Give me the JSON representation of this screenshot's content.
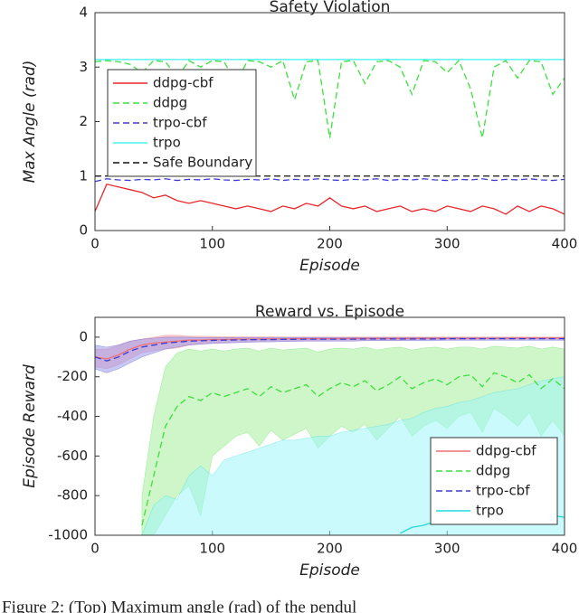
{
  "caption": "Figure 2: (Top) Maximum angle (rad) of the pendul",
  "chart_data": [
    {
      "type": "line",
      "title": "Safety Violation",
      "x_label": "Episode",
      "y_label": "Max Angle (rad)",
      "xlim": [
        0,
        400
      ],
      "ylim": [
        0,
        4
      ],
      "xticks": [
        0,
        100,
        200,
        300,
        400
      ],
      "yticks": [
        0,
        1,
        2,
        3,
        4
      ],
      "legend": "upper left",
      "x": [
        0,
        10,
        20,
        30,
        40,
        50,
        60,
        70,
        80,
        90,
        100,
        110,
        120,
        130,
        140,
        150,
        160,
        170,
        180,
        190,
        200,
        210,
        220,
        230,
        240,
        250,
        260,
        270,
        280,
        290,
        300,
        310,
        320,
        330,
        340,
        350,
        360,
        370,
        380,
        390,
        400
      ],
      "series": [
        {
          "name": "ddpg-cbf",
          "color": "#e8262a",
          "dash": false,
          "values": [
            0.35,
            0.85,
            0.8,
            0.75,
            0.7,
            0.6,
            0.65,
            0.55,
            0.5,
            0.55,
            0.5,
            0.45,
            0.4,
            0.45,
            0.4,
            0.35,
            0.45,
            0.4,
            0.5,
            0.45,
            0.6,
            0.45,
            0.4,
            0.45,
            0.35,
            0.4,
            0.45,
            0.35,
            0.4,
            0.35,
            0.45,
            0.4,
            0.35,
            0.45,
            0.4,
            0.3,
            0.45,
            0.35,
            0.45,
            0.4,
            0.3
          ]
        },
        {
          "name": "ddpg",
          "color": "#3ce03c",
          "dash": true,
          "values": [
            3.1,
            3.12,
            3.1,
            3.05,
            2.9,
            3.12,
            3.1,
            2.8,
            3.12,
            3.0,
            3.12,
            3.1,
            2.7,
            3.12,
            3.1,
            3.0,
            3.12,
            2.4,
            3.1,
            3.12,
            1.7,
            3.1,
            3.12,
            2.7,
            3.1,
            3.12,
            3.0,
            2.5,
            3.12,
            3.1,
            2.9,
            3.12,
            2.6,
            1.7,
            3.0,
            3.12,
            2.8,
            3.12,
            3.1,
            2.5,
            2.8
          ]
        },
        {
          "name": "trpo-cbf",
          "color": "#3b3bd0",
          "dash": true,
          "values": [
            0.9,
            0.95,
            0.93,
            0.92,
            0.94,
            0.93,
            0.95,
            0.92,
            0.94,
            0.93,
            0.95,
            0.93,
            0.92,
            0.94,
            0.93,
            0.95,
            0.92,
            0.94,
            0.93,
            0.95,
            0.93,
            0.92,
            0.94,
            0.93,
            0.95,
            0.92,
            0.94,
            0.93,
            0.95,
            0.93,
            0.92,
            0.94,
            0.93,
            0.95,
            0.92,
            0.94,
            0.93,
            0.95,
            0.93,
            0.92,
            0.94
          ]
        },
        {
          "name": "trpo",
          "color": "#4ff2f2",
          "dash": false,
          "values": [
            3.14,
            3.14,
            3.14,
            3.14,
            3.14,
            3.14,
            3.14,
            3.14,
            3.14,
            3.14,
            3.14,
            3.14,
            3.14,
            3.14,
            3.14,
            3.14,
            3.14,
            3.14,
            3.14,
            3.14,
            3.14,
            3.14,
            3.14,
            3.14,
            3.14,
            3.14,
            3.14,
            3.14,
            3.14,
            3.14,
            3.14,
            3.14,
            3.14,
            3.14,
            3.14,
            3.14,
            3.14,
            3.14,
            3.14,
            3.14,
            3.14
          ]
        },
        {
          "name": "Safe Boundary",
          "color": "#111111",
          "dash": true,
          "values": [
            1,
            1,
            1,
            1,
            1,
            1,
            1,
            1,
            1,
            1,
            1,
            1,
            1,
            1,
            1,
            1,
            1,
            1,
            1,
            1,
            1,
            1,
            1,
            1,
            1,
            1,
            1,
            1,
            1,
            1,
            1,
            1,
            1,
            1,
            1,
            1,
            1,
            1,
            1,
            1,
            1
          ]
        }
      ]
    },
    {
      "type": "line",
      "title": "Reward vs. Episode",
      "x_label": "Episode",
      "y_label": "Episode Reward",
      "xlim": [
        0,
        400
      ],
      "ylim": [
        -1000,
        100
      ],
      "xticks": [
        0,
        100,
        200,
        300,
        400
      ],
      "yticks": [
        -1000,
        -800,
        -600,
        -400,
        -200,
        0
      ],
      "legend": "lower right",
      "x": [
        0,
        10,
        20,
        30,
        40,
        50,
        60,
        70,
        80,
        90,
        100,
        110,
        120,
        130,
        140,
        150,
        160,
        170,
        180,
        190,
        200,
        210,
        220,
        230,
        240,
        250,
        260,
        270,
        280,
        290,
        300,
        310,
        320,
        330,
        340,
        350,
        360,
        370,
        380,
        390,
        400
      ],
      "series": [
        {
          "name": "ddpg-cbf",
          "color": "#f07070",
          "dash": false,
          "band": "#f5a0a0",
          "values": [
            -100,
            -110,
            -90,
            -60,
            -40,
            -30,
            -25,
            -20,
            -15,
            -15,
            -12,
            -12,
            -10,
            -10,
            -10,
            -9,
            -9,
            -8,
            -8,
            -8,
            -8,
            -8,
            -7,
            -7,
            -7,
            -7,
            -7,
            -7,
            -6,
            -6,
            -6,
            -6,
            -6,
            -6,
            -6,
            -6,
            -5,
            -5,
            -5,
            -5,
            -5
          ],
          "lower": [
            -150,
            -160,
            -140,
            -110,
            -80,
            -70,
            -60,
            -55,
            -40,
            -35,
            -30,
            -28,
            -25,
            -24,
            -22,
            -20,
            -20,
            -19,
            -18,
            -18,
            -17,
            -17,
            -16,
            -16,
            -15,
            -15,
            -15,
            -14,
            -14,
            -13,
            -13,
            -13,
            -13,
            -12,
            -12,
            -12,
            -12,
            -11,
            -11,
            -11,
            -11
          ],
          "upper": [
            -60,
            -60,
            -40,
            -20,
            -10,
            0,
            10,
            10,
            5,
            5,
            4,
            3,
            2,
            2,
            2,
            2,
            1,
            1,
            1,
            1,
            1,
            1,
            1,
            1,
            1,
            1,
            1,
            1,
            1,
            1,
            1,
            1,
            1,
            1,
            1,
            1,
            1,
            1,
            1,
            1,
            1
          ]
        },
        {
          "name": "ddpg",
          "color": "#3ce03c",
          "dash": true,
          "band": "#a8ef9a",
          "values": [
            null,
            null,
            null,
            null,
            -950,
            -700,
            -450,
            -350,
            -300,
            -320,
            -280,
            -300,
            -280,
            -260,
            -300,
            -250,
            -280,
            -260,
            -240,
            -300,
            -260,
            -230,
            -250,
            -220,
            -270,
            -240,
            -200,
            -260,
            -230,
            -210,
            -240,
            -200,
            -190,
            -250,
            -180,
            -200,
            -230,
            -190,
            -260,
            -210,
            -260
          ],
          "lower": [
            null,
            null,
            null,
            null,
            -1000,
            -1000,
            -900,
            -800,
            -750,
            -900,
            -600,
            -550,
            -500,
            -480,
            -550,
            -470,
            -520,
            -490,
            -460,
            -560,
            -500,
            -450,
            -480,
            -440,
            -520,
            -460,
            -400,
            -500,
            -450,
            -420,
            -460,
            -400,
            -380,
            -480,
            -360,
            -400,
            -450,
            -380,
            -500,
            -420,
            -500
          ],
          "upper": [
            null,
            null,
            null,
            null,
            -800,
            -400,
            -150,
            -80,
            -60,
            -70,
            -60,
            -70,
            -60,
            -55,
            -70,
            -55,
            -65,
            -60,
            -55,
            -75,
            -60,
            -55,
            -60,
            -50,
            -65,
            -55,
            -50,
            -65,
            -55,
            -50,
            -60,
            -50,
            -50,
            -60,
            -45,
            -50,
            -55,
            -45,
            -60,
            -50,
            -60
          ]
        },
        {
          "name": "trpo-cbf",
          "color": "#3b3bd0",
          "dash": true,
          "band": "#9a9af0",
          "values": [
            -100,
            -120,
            -100,
            -70,
            -50,
            -40,
            -30,
            -25,
            -20,
            -18,
            -16,
            -15,
            -14,
            -13,
            -12,
            -12,
            -11,
            -11,
            -10,
            -10,
            -10,
            -10,
            -10,
            -9,
            -9,
            -9,
            -9,
            -9,
            -9,
            -9,
            -8,
            -8,
            -8,
            -8,
            -8,
            -8,
            -8,
            -8,
            -8,
            -8,
            -8
          ],
          "lower": [
            -160,
            -180,
            -160,
            -130,
            -100,
            -80,
            -60,
            -50,
            -40,
            -35,
            -32,
            -30,
            -28,
            -26,
            -24,
            -24,
            -22,
            -22,
            -20,
            -20,
            -20,
            -20,
            -20,
            -18,
            -18,
            -18,
            -18,
            -18,
            -18,
            -18,
            -16,
            -16,
            -16,
            -16,
            -16,
            -16,
            -16,
            -16,
            -16,
            -16,
            -16
          ],
          "upper": [
            -40,
            -50,
            -40,
            -20,
            -10,
            -5,
            0,
            0,
            0,
            -2,
            -2,
            -2,
            -2,
            -2,
            -2,
            -2,
            -2,
            -2,
            -2,
            -2,
            -2,
            -2,
            -2,
            -2,
            -2,
            -2,
            -2,
            -2,
            -2,
            -2,
            -2,
            -2,
            -2,
            -2,
            -2,
            -2,
            -2,
            -2,
            -2,
            -2,
            -2
          ]
        },
        {
          "name": "trpo",
          "color": "#22d8e0",
          "dash": false,
          "band": "#9ff5f8",
          "values": [
            null,
            null,
            null,
            null,
            null,
            null,
            null,
            null,
            null,
            null,
            null,
            null,
            null,
            null,
            null,
            null,
            null,
            null,
            null,
            null,
            null,
            null,
            null,
            null,
            null,
            null,
            -990,
            -960,
            -950,
            -930,
            -920,
            -910,
            -890,
            -870,
            -880,
            -890,
            -880,
            -900,
            -910,
            -900,
            -910
          ],
          "lower": [
            null,
            null,
            null,
            null,
            -1000,
            -1000,
            -1000,
            -1000,
            -1000,
            -1000,
            -1000,
            -1000,
            -1000,
            -1000,
            -1000,
            -1000,
            -1000,
            -1000,
            -1000,
            -1000,
            -1000,
            -1000,
            -1000,
            -1000,
            -1000,
            -1000,
            -1000,
            -1000,
            -1000,
            -1000,
            -1000,
            -1000,
            -1000,
            -1000,
            -1000,
            -1000,
            -1000,
            -1000,
            -1000,
            -1000,
            -1000
          ],
          "upper": [
            null,
            null,
            null,
            null,
            -1000,
            -850,
            -800,
            -820,
            -700,
            -650,
            -700,
            -620,
            -600,
            -580,
            -560,
            -540,
            -520,
            -520,
            -510,
            -500,
            -500,
            -480,
            -470,
            -460,
            -450,
            -440,
            -420,
            -410,
            -380,
            -360,
            -350,
            -330,
            -320,
            -300,
            -280,
            -270,
            -260,
            -240,
            -220,
            -210,
            -200
          ]
        }
      ]
    }
  ]
}
